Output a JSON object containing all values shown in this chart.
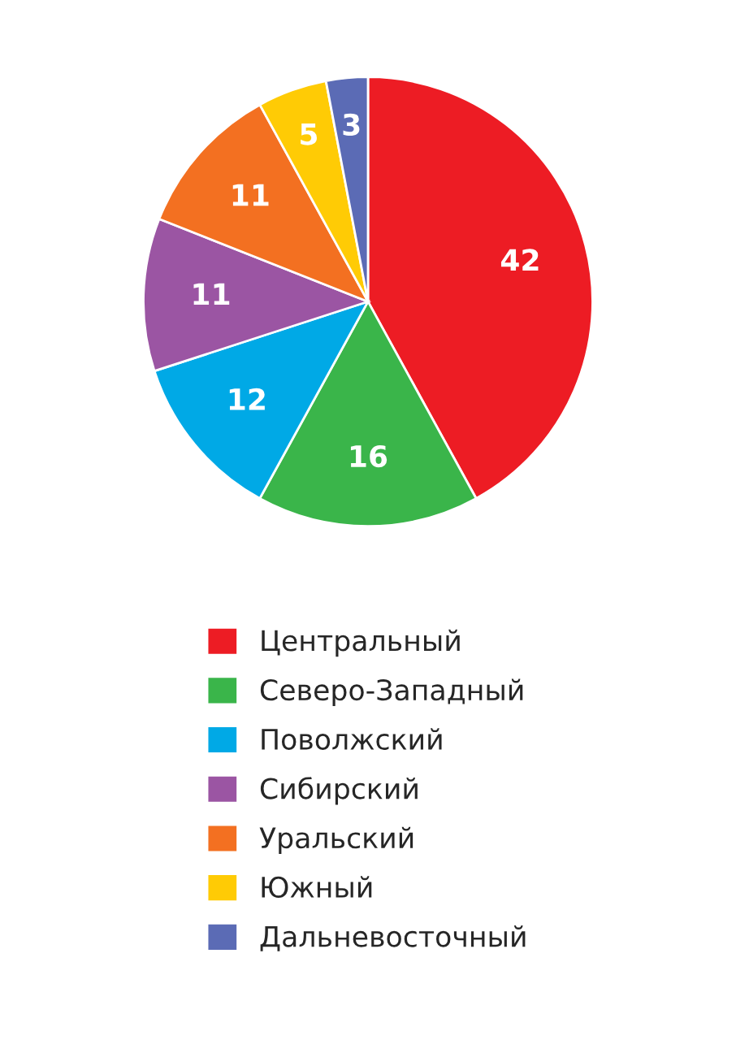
{
  "chart_data": {
    "type": "pie",
    "categories": [
      "Центральный",
      "Северо-Западный",
      "Поволжский",
      "Сибирский",
      "Уральский",
      "Южный",
      "Дальневосточный"
    ],
    "values": [
      42,
      16,
      12,
      11,
      11,
      5,
      3
    ],
    "colors": [
      "#ed1c24",
      "#3ab54a",
      "#00a9e6",
      "#9b55a3",
      "#f37021",
      "#ffcb05",
      "#5b6bb5"
    ],
    "data_labels": true,
    "legend": "bottom"
  }
}
